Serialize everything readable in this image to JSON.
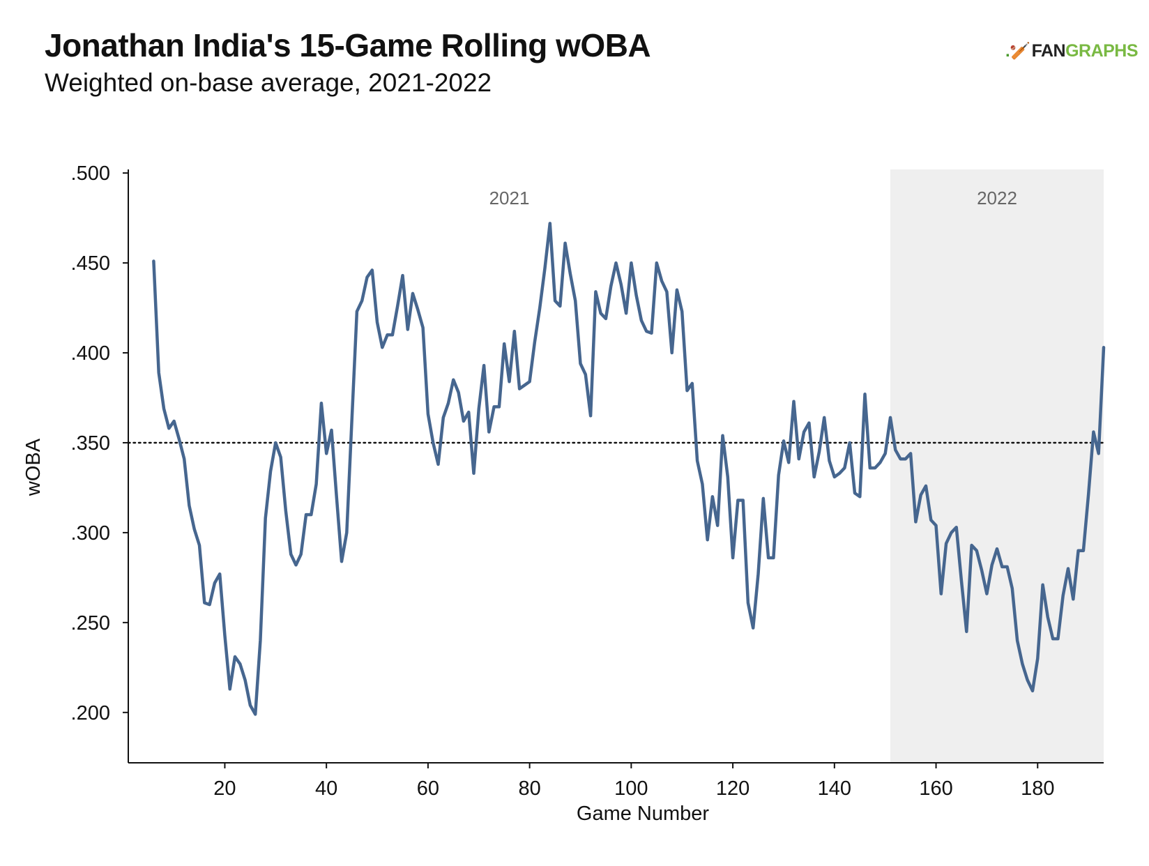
{
  "header": {
    "title": "Jonathan India's 15-Game Rolling wOBA",
    "subtitle": "Weighted on-base average, 2021-2022"
  },
  "logo": {
    "text_fan": "FAN",
    "text_graphs": "GRAPHS",
    "icon": "fangraphs-batter-icon"
  },
  "colors": {
    "line": "#46668f",
    "shade_2022": "#efefef",
    "logo_green": "#79b943"
  },
  "chart_data": {
    "type": "line",
    "title": "Jonathan India's 15-Game Rolling wOBA",
    "subtitle": "Weighted on-base average, 2021-2022",
    "xlabel": "Game Number",
    "ylabel": "wOBA",
    "xlim": [
      1,
      193
    ],
    "ylim": [
      0.172,
      0.502
    ],
    "x_ticks": [
      20,
      40,
      60,
      80,
      100,
      120,
      140,
      160,
      180
    ],
    "y_ticks": [
      0.2,
      0.25,
      0.3,
      0.35,
      0.4,
      0.45,
      0.5
    ],
    "y_tick_labels": [
      ".200",
      ".250",
      ".300",
      ".350",
      ".400",
      ".450",
      ".500"
    ],
    "grid": false,
    "reference_line": {
      "y": 0.35,
      "style": "dotted"
    },
    "regions": [
      {
        "label": "2021",
        "x_start": 1,
        "x_end": 151,
        "shaded": false
      },
      {
        "label": "2022",
        "x_start": 151,
        "x_end": 193,
        "shaded": true
      }
    ],
    "series": [
      {
        "x": [
          6,
          7,
          8,
          9,
          10,
          11,
          12,
          13,
          14,
          15,
          16,
          17,
          18,
          19,
          20,
          21,
          22,
          23,
          24,
          25,
          26,
          27,
          28,
          29,
          30,
          31,
          32,
          33,
          34,
          35,
          36,
          37,
          38,
          39,
          40,
          41,
          42,
          43,
          44,
          45,
          46,
          47,
          48,
          49,
          50,
          51,
          52,
          53,
          54,
          55,
          56,
          57,
          58,
          59,
          60,
          61,
          62,
          63,
          64,
          65,
          66,
          67,
          68,
          69,
          70,
          71,
          72,
          73,
          74,
          75,
          76,
          77,
          78,
          79,
          80,
          81,
          82,
          83,
          84,
          85,
          86,
          87,
          88,
          89,
          90,
          91,
          92,
          93,
          94,
          95,
          96,
          97,
          98,
          99,
          100,
          101,
          102,
          103,
          104,
          105,
          106,
          107,
          108,
          109,
          110,
          111,
          112,
          113,
          114,
          115,
          116,
          117,
          118,
          119,
          120,
          121,
          122,
          123,
          124,
          125,
          126,
          127,
          128,
          129,
          130,
          131,
          132,
          133,
          134,
          135,
          136,
          137,
          138,
          139,
          140,
          141,
          142,
          143,
          144,
          145,
          146,
          147,
          148,
          149,
          150,
          151,
          152,
          153,
          154,
          155,
          156,
          157,
          158,
          159,
          160,
          161,
          162,
          163,
          164,
          165,
          166,
          167,
          168,
          169,
          170,
          171,
          172,
          173,
          174,
          175,
          176,
          177,
          178,
          179,
          180,
          181,
          182,
          183,
          184,
          185,
          186,
          187,
          188,
          189,
          190,
          191,
          192,
          193
        ],
        "y": [
          0.451,
          0.389,
          0.369,
          0.358,
          0.362,
          0.352,
          0.341,
          0.315,
          0.302,
          0.293,
          0.261,
          0.26,
          0.272,
          0.277,
          0.243,
          0.213,
          0.231,
          0.227,
          0.218,
          0.204,
          0.199,
          0.24,
          0.308,
          0.334,
          0.35,
          0.342,
          0.312,
          0.288,
          0.282,
          0.288,
          0.31,
          0.31,
          0.327,
          0.372,
          0.344,
          0.357,
          0.32,
          0.284,
          0.3,
          0.362,
          0.423,
          0.429,
          0.442,
          0.446,
          0.417,
          0.403,
          0.41,
          0.41,
          0.426,
          0.443,
          0.413,
          0.433,
          0.424,
          0.414,
          0.366,
          0.35,
          0.338,
          0.364,
          0.372,
          0.385,
          0.378,
          0.362,
          0.367,
          0.333,
          0.369,
          0.393,
          0.356,
          0.37,
          0.37,
          0.405,
          0.384,
          0.412,
          0.38,
          0.382,
          0.384,
          0.406,
          0.425,
          0.447,
          0.472,
          0.429,
          0.426,
          0.461,
          0.444,
          0.429,
          0.394,
          0.388,
          0.365,
          0.434,
          0.422,
          0.419,
          0.437,
          0.45,
          0.438,
          0.422,
          0.45,
          0.432,
          0.418,
          0.412,
          0.411,
          0.45,
          0.44,
          0.434,
          0.4,
          0.435,
          0.423,
          0.379,
          0.383,
          0.34,
          0.327,
          0.296,
          0.32,
          0.304,
          0.354,
          0.331,
          0.286,
          0.318,
          0.318,
          0.261,
          0.247,
          0.277,
          0.319,
          0.286,
          0.286,
          0.332,
          0.351,
          0.339,
          0.373,
          0.341,
          0.356,
          0.361,
          0.331,
          0.345,
          0.364,
          0.34,
          0.331,
          0.333,
          0.336,
          0.35,
          0.322,
          0.32,
          0.377,
          0.336,
          0.336,
          0.339,
          0.344,
          0.364,
          0.346,
          0.341,
          0.341,
          0.344,
          0.306,
          0.321,
          0.326,
          0.307,
          0.304,
          0.266,
          0.294,
          0.3,
          0.303,
          0.273,
          0.245,
          0.293,
          0.29,
          0.279,
          0.266,
          0.282,
          0.291,
          0.281,
          0.281,
          0.269,
          0.24,
          0.227,
          0.218,
          0.212,
          0.23,
          0.271,
          0.253,
          0.241,
          0.241,
          0.265,
          0.28,
          0.263,
          0.29,
          0.29,
          0.321,
          0.356,
          0.344,
          0.403
        ]
      }
    ]
  }
}
